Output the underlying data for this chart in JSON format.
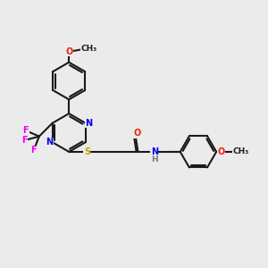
{
  "bg_color": "#ebebeb",
  "bond_color": "#1a1a1a",
  "bond_width": 1.5,
  "atom_colors": {
    "N": "#0000ee",
    "O": "#ee2200",
    "S": "#bbaa00",
    "F": "#ee00ee",
    "H": "#777777",
    "C": "#1a1a1a"
  },
  "font_size": 7.0
}
